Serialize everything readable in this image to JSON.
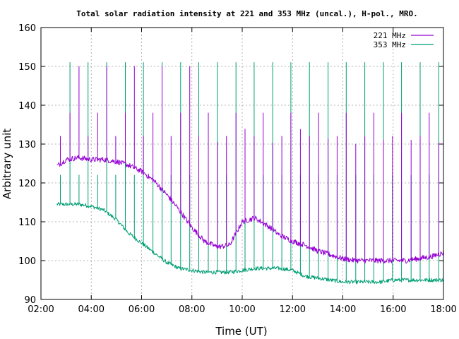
{
  "chart_data": {
    "type": "line",
    "title": "Total solar radiation intensity at 221 and 353 MHz (uncal.), H-pol., MRO.",
    "xlabel": "Time (UT)",
    "ylabel": "Arbitrary unit",
    "xlim": [
      "02:00",
      "18:00"
    ],
    "ylim": [
      90,
      160
    ],
    "x_ticks": [
      "02:00",
      "04:00",
      "06:00",
      "08:00",
      "10:00",
      "12:00",
      "14:00",
      "16:00",
      "18:00"
    ],
    "y_ticks": [
      90,
      100,
      110,
      120,
      130,
      140,
      150,
      160
    ],
    "grid": true,
    "legend": "top-right",
    "observation_start": "02:38",
    "observation_end": "18:00",
    "series": [
      {
        "name": "221 MHz",
        "color": "#9400d3",
        "x": [
          "02:40",
          "03:00",
          "03:30",
          "04:00",
          "04:30",
          "05:00",
          "05:30",
          "06:00",
          "06:30",
          "07:00",
          "07:30",
          "08:00",
          "08:30",
          "09:00",
          "09:30",
          "10:00",
          "10:30",
          "11:00",
          "11:30",
          "12:00",
          "12:30",
          "13:00",
          "13:30",
          "14:00",
          "14:30",
          "15:00",
          "15:30",
          "16:00",
          "16:30",
          "17:00",
          "17:30",
          "18:00"
        ],
        "values": [
          124.5,
          126,
          126.5,
          126,
          126,
          125.5,
          124.5,
          123,
          120.5,
          117,
          113,
          108.5,
          105,
          103.5,
          104,
          110,
          111,
          109,
          106.5,
          105,
          104,
          102.5,
          101.5,
          100.5,
          100,
          100,
          100,
          100,
          100,
          100.5,
          101,
          102
        ],
        "calibration_spikes_to": [
          132,
          138,
          150
        ]
      },
      {
        "name": "353 MHz",
        "color": "#009e73",
        "x": [
          "02:40",
          "03:00",
          "03:30",
          "04:00",
          "04:30",
          "05:00",
          "05:30",
          "06:00",
          "06:30",
          "07:00",
          "07:30",
          "08:00",
          "08:30",
          "09:00",
          "09:30",
          "10:00",
          "10:30",
          "11:00",
          "11:30",
          "12:00",
          "12:30",
          "13:00",
          "13:30",
          "14:00",
          "14:30",
          "15:00",
          "15:30",
          "16:00",
          "16:30",
          "17:00",
          "17:30",
          "18:00"
        ],
        "values": [
          114.5,
          114.5,
          114.5,
          114,
          113,
          110.5,
          107,
          104.5,
          102,
          99.5,
          98,
          97.5,
          97,
          97,
          97,
          97.5,
          98,
          98,
          98,
          97.5,
          96,
          95.5,
          95,
          94.5,
          94.5,
          94.5,
          94.5,
          95,
          95,
          95,
          95,
          95
        ],
        "calibration_spikes_to": [
          122,
          151
        ]
      }
    ]
  }
}
